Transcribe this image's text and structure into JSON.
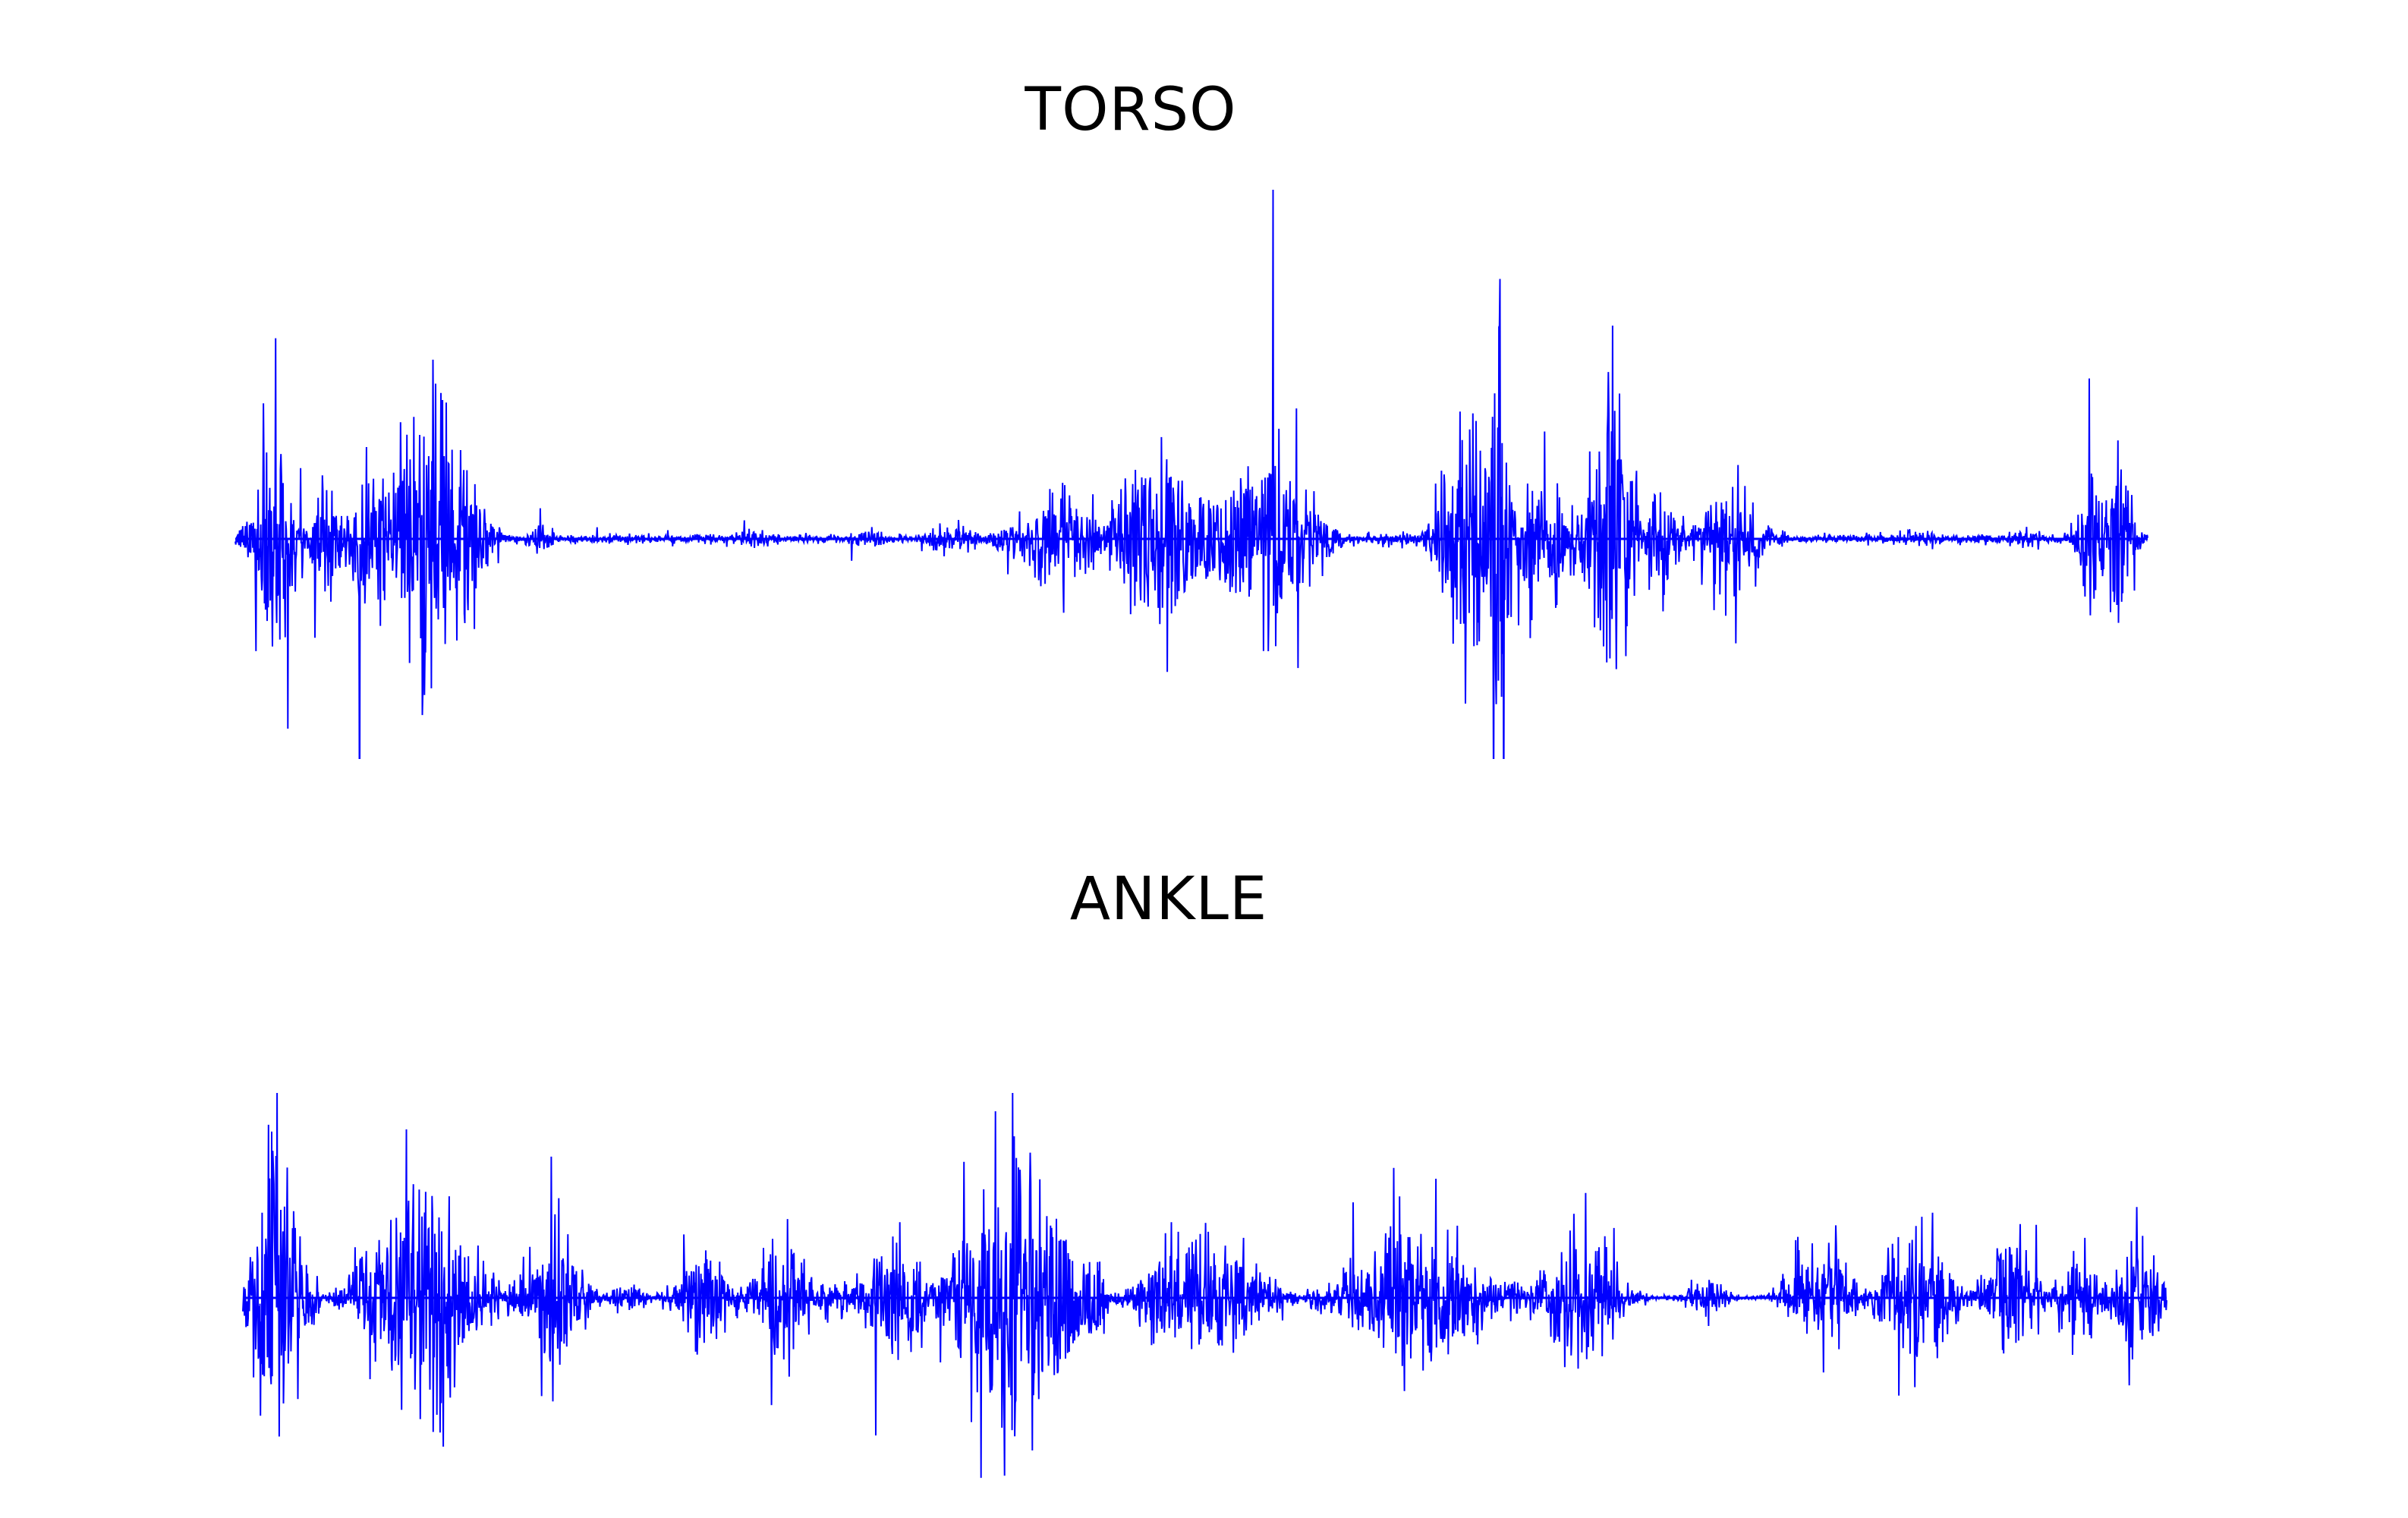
{
  "chart_data": [
    {
      "type": "line",
      "title": "TORSO",
      "xlabel": "",
      "ylabel": "",
      "axes_visible": false,
      "grid": false,
      "color": "#0000ff",
      "ylim": [
        -1,
        1
      ],
      "bursts": [
        {
          "x": 0.02,
          "w": 0.008,
          "a": 0.36
        },
        {
          "x": 0.048,
          "w": 0.006,
          "a": 0.22
        },
        {
          "x": 0.07,
          "w": 0.008,
          "a": 0.28
        },
        {
          "x": 0.105,
          "w": 0.015,
          "a": 0.45
        },
        {
          "x": 0.16,
          "w": 0.006,
          "a": 0.04
        },
        {
          "x": 0.27,
          "w": 0.01,
          "a": 0.03
        },
        {
          "x": 0.33,
          "w": 0.01,
          "a": 0.03
        },
        {
          "x": 0.4,
          "w": 0.01,
          "a": 0.03
        },
        {
          "x": 0.37,
          "w": 0.008,
          "a": 0.04
        },
        {
          "x": 0.38,
          "w": 0.008,
          "a": 0.04
        },
        {
          "x": 0.43,
          "w": 0.018,
          "a": 0.15
        },
        {
          "x": 0.48,
          "w": 0.015,
          "a": 0.3
        },
        {
          "x": 0.507,
          "w": 0.012,
          "a": 0.12,
          "dense": true
        },
        {
          "x": 0.54,
          "w": 0.018,
          "a": 0.28
        },
        {
          "x": 0.615,
          "w": 0.01,
          "a": 0.02
        },
        {
          "x": 0.6,
          "w": 0.01,
          "a": 0.02
        },
        {
          "x": 0.6,
          "w": 0.01,
          "a": 0.02
        },
        {
          "x": 0.643,
          "w": 0.01,
          "a": 0.35
        },
        {
          "x": 0.66,
          "w": 0.004,
          "a": 0.95
        },
        {
          "x": 0.685,
          "w": 0.012,
          "a": 0.24
        },
        {
          "x": 0.72,
          "w": 0.01,
          "a": 0.45
        },
        {
          "x": 0.745,
          "w": 0.008,
          "a": 0.15
        },
        {
          "x": 0.78,
          "w": 0.01,
          "a": 0.22
        },
        {
          "x": 0.8,
          "w": 0.008,
          "a": 0.04
        },
        {
          "x": 0.88,
          "w": 0.01,
          "a": 0.03
        },
        {
          "x": 0.938,
          "w": 0.01,
          "a": 0.03
        },
        {
          "x": 0.97,
          "w": 0.006,
          "a": 0.2
        },
        {
          "x": 0.985,
          "w": 0.005,
          "a": 0.38
        }
      ]
    },
    {
      "type": "line",
      "title": "ANKLE",
      "xlabel": "",
      "ylabel": "",
      "axes_visible": false,
      "grid": false,
      "color": "#0000ff",
      "ylim": [
        -1,
        1
      ],
      "bursts": [
        {
          "x": 0.018,
          "w": 0.01,
          "a": 0.75
        },
        {
          "x": 0.06,
          "w": 0.008,
          "a": 0.1
        },
        {
          "x": 0.09,
          "w": 0.02,
          "a": 0.62
        },
        {
          "x": 0.16,
          "w": 0.012,
          "a": 0.4
        },
        {
          "x": 0.2,
          "w": 0.008,
          "a": 0.08
        },
        {
          "x": 0.24,
          "w": 0.01,
          "a": 0.3
        },
        {
          "x": 0.28,
          "w": 0.01,
          "a": 0.35
        },
        {
          "x": 0.31,
          "w": 0.008,
          "a": 0.1
        },
        {
          "x": 0.34,
          "w": 0.012,
          "a": 0.35
        },
        {
          "x": 0.4,
          "w": 0.02,
          "a": 0.8
        },
        {
          "x": 0.432,
          "w": 0.01,
          "a": 0.18,
          "dense": true
        },
        {
          "x": 0.5,
          "w": 0.022,
          "a": 0.38
        },
        {
          "x": 0.56,
          "w": 0.008,
          "a": 0.06
        },
        {
          "x": 0.61,
          "w": 0.025,
          "a": 0.4
        },
        {
          "x": 0.66,
          "w": 0.01,
          "a": 0.1
        },
        {
          "x": 0.695,
          "w": 0.014,
          "a": 0.38
        },
        {
          "x": 0.76,
          "w": 0.01,
          "a": 0.08
        },
        {
          "x": 0.82,
          "w": 0.012,
          "a": 0.3
        },
        {
          "x": 0.87,
          "w": 0.014,
          "a": 0.35
        },
        {
          "x": 0.92,
          "w": 0.01,
          "a": 0.35
        },
        {
          "x": 0.955,
          "w": 0.01,
          "a": 0.22
        },
        {
          "x": 0.985,
          "w": 0.008,
          "a": 0.4
        }
      ]
    }
  ]
}
